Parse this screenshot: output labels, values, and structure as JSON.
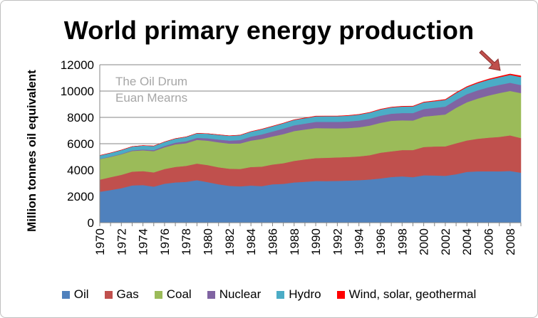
{
  "chart_data": {
    "type": "area",
    "stacked": true,
    "title": "World primary energy production",
    "ylabel": "Million tonnes oil equivalent",
    "xlabel": "",
    "ylim": [
      0,
      12000
    ],
    "yticks": [
      0,
      2000,
      4000,
      6000,
      8000,
      10000,
      12000
    ],
    "xticks": [
      "1970",
      "1972",
      "1974",
      "1976",
      "1978",
      "1980",
      "1982",
      "1984",
      "1986",
      "1988",
      "1990",
      "1992",
      "1994",
      "1996",
      "1998",
      "2000",
      "2002",
      "2004",
      "2006",
      "2008"
    ],
    "x": [
      1970,
      1971,
      1972,
      1973,
      1974,
      1975,
      1976,
      1977,
      1978,
      1979,
      1980,
      1981,
      1982,
      1983,
      1984,
      1985,
      1986,
      1987,
      1988,
      1989,
      1990,
      1991,
      1992,
      1993,
      1994,
      1995,
      1996,
      1997,
      1998,
      1999,
      2000,
      2001,
      2002,
      2003,
      2004,
      2005,
      2006,
      2007,
      2008,
      2009
    ],
    "grid": "horizontal",
    "legend_position": "bottom",
    "annotations": [
      "The Oil Drum",
      "Euan Mearns"
    ],
    "arrow_annotation": "down-right arrow pointing to 2008 peak",
    "series": [
      {
        "name": "Oil",
        "color": "#4f81bd",
        "values": [
          2350,
          2480,
          2620,
          2830,
          2860,
          2740,
          2960,
          3060,
          3100,
          3230,
          3080,
          2920,
          2800,
          2760,
          2820,
          2780,
          2920,
          2950,
          3060,
          3110,
          3170,
          3160,
          3180,
          3200,
          3230,
          3280,
          3360,
          3470,
          3520,
          3460,
          3600,
          3590,
          3560,
          3680,
          3860,
          3900,
          3910,
          3900,
          3930,
          3800
        ]
      },
      {
        "name": "Gas",
        "color": "#c0504d",
        "values": [
          920,
          980,
          1020,
          1050,
          1060,
          1080,
          1120,
          1180,
          1220,
          1260,
          1300,
          1290,
          1300,
          1320,
          1410,
          1480,
          1500,
          1570,
          1640,
          1700,
          1740,
          1770,
          1780,
          1790,
          1810,
          1850,
          1960,
          1950,
          2000,
          2060,
          2150,
          2200,
          2240,
          2350,
          2390,
          2480,
          2550,
          2620,
          2700,
          2630
        ]
      },
      {
        "name": "Coal",
        "color": "#9bbb59",
        "values": [
          1560,
          1540,
          1560,
          1570,
          1580,
          1620,
          1650,
          1710,
          1720,
          1800,
          1850,
          1900,
          1910,
          1940,
          2010,
          2100,
          2130,
          2210,
          2260,
          2270,
          2280,
          2250,
          2210,
          2200,
          2210,
          2250,
          2270,
          2320,
          2260,
          2240,
          2310,
          2350,
          2420,
          2700,
          2900,
          3050,
          3200,
          3330,
          3380,
          3420
        ]
      },
      {
        "name": "Nuclear",
        "color": "#8064a2",
        "values": [
          20,
          30,
          40,
          50,
          60,
          80,
          100,
          130,
          150,
          160,
          180,
          210,
          230,
          260,
          300,
          350,
          380,
          420,
          440,
          450,
          470,
          480,
          490,
          500,
          510,
          520,
          540,
          540,
          550,
          570,
          580,
          590,
          600,
          600,
          620,
          630,
          630,
          620,
          620,
          610
        ]
      },
      {
        "name": "Hydro",
        "color": "#4bacc6",
        "values": [
          260,
          270,
          280,
          285,
          300,
          305,
          310,
          310,
          330,
          340,
          350,
          355,
          360,
          370,
          380,
          390,
          395,
          400,
          410,
          410,
          420,
          430,
          430,
          440,
          450,
          460,
          470,
          480,
          490,
          500,
          500,
          500,
          510,
          520,
          530,
          550,
          570,
          580,
          600,
          610
        ]
      },
      {
        "name": "Wind, solar, geothermal",
        "color": "#ff0000",
        "values": [
          5,
          5,
          5,
          5,
          5,
          5,
          5,
          5,
          5,
          5,
          10,
          10,
          10,
          10,
          10,
          15,
          15,
          15,
          15,
          20,
          20,
          20,
          20,
          20,
          20,
          25,
          25,
          25,
          30,
          30,
          30,
          35,
          35,
          40,
          45,
          50,
          55,
          65,
          75,
          85
        ]
      }
    ]
  }
}
